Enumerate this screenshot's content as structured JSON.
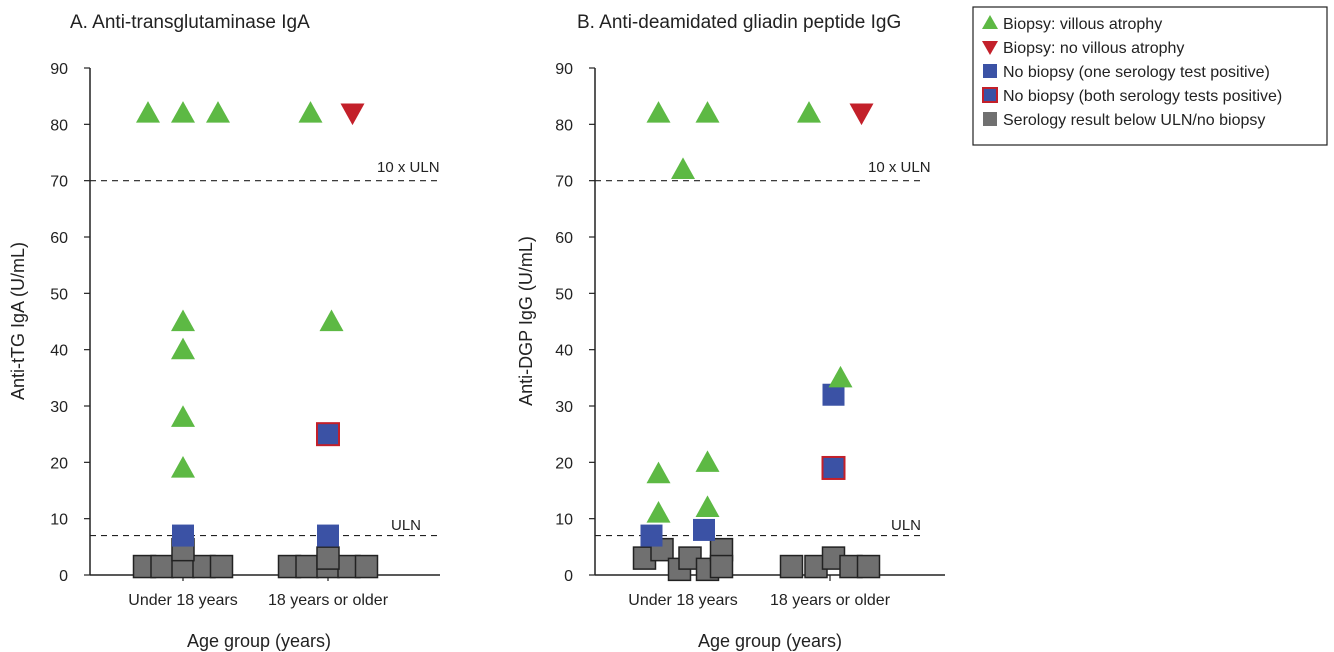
{
  "colors": {
    "villous": "#5db944",
    "no_villous": "#c3202a",
    "one_positive": "#3b52a5",
    "both_positive_border": "#c3202a",
    "below_uln": "#707070",
    "below_uln_border": "#222222"
  },
  "legend": {
    "items": [
      {
        "label": "Biopsy: villous atrophy",
        "marker": "triangle-up",
        "color": "#5db944"
      },
      {
        "label": "Biopsy: no villous atrophy",
        "marker": "triangle-down",
        "color": "#c3202a"
      },
      {
        "label": "No biopsy (one serology test positive)",
        "marker": "square",
        "color": "#3b52a5"
      },
      {
        "label": "No biopsy (both serology tests positive)",
        "marker": "square-red-border",
        "color": "#3b52a5"
      },
      {
        "label": "Serology result below ULN/no biopsy",
        "marker": "square",
        "color": "#707070"
      }
    ]
  },
  "chart_data": [
    {
      "type": "scatter",
      "title": "A. Anti-transglutaminase IgA",
      "xlabel": "Age group (years)",
      "ylabel": "Anti-tTG IgA (U/mL)",
      "categories": [
        "Under 18 years",
        "18 years or older"
      ],
      "ylim": [
        0,
        90
      ],
      "yticks": [
        0,
        10,
        20,
        30,
        40,
        50,
        60,
        70,
        80,
        90
      ],
      "reference_lines": [
        {
          "label": "10 x ULN",
          "value": 70
        },
        {
          "label": "ULN",
          "value": 7
        }
      ],
      "series": [
        {
          "name": "Biopsy: villous atrophy",
          "points": [
            {
              "group": "Under 18 years",
              "offset": -0.5,
              "y": 82
            },
            {
              "group": "Under 18 years",
              "offset": 0,
              "y": 82
            },
            {
              "group": "Under 18 years",
              "offset": 0.5,
              "y": 82
            },
            {
              "group": "Under 18 years",
              "offset": 0,
              "y": 45
            },
            {
              "group": "Under 18 years",
              "offset": 0,
              "y": 40
            },
            {
              "group": "Under 18 years",
              "offset": 0,
              "y": 28
            },
            {
              "group": "Under 18 years",
              "offset": 0,
              "y": 19
            },
            {
              "group": "18 years or older",
              "offset": -0.25,
              "y": 82
            },
            {
              "group": "18 years or older",
              "offset": 0.05,
              "y": 45
            }
          ]
        },
        {
          "name": "Biopsy: no villous atrophy",
          "points": [
            {
              "group": "18 years or older",
              "offset": 0.35,
              "y": 82
            }
          ]
        },
        {
          "name": "No biopsy (one serology test positive)",
          "points": [
            {
              "group": "Under 18 years",
              "offset": 0,
              "y": 7
            },
            {
              "group": "18 years or older",
              "offset": 0,
              "y": 7
            }
          ]
        },
        {
          "name": "No biopsy (both serology tests positive)",
          "points": [
            {
              "group": "18 years or older",
              "offset": 0,
              "y": 25
            }
          ]
        },
        {
          "name": "Serology result below ULN/no biopsy",
          "points": [
            {
              "group": "Under 18 years",
              "offset": -0.55,
              "y": 1.5
            },
            {
              "group": "Under 18 years",
              "offset": -0.3,
              "y": 1.5
            },
            {
              "group": "Under 18 years",
              "offset": 0,
              "y": 1.5
            },
            {
              "group": "Under 18 years",
              "offset": 0.3,
              "y": 1.5
            },
            {
              "group": "Under 18 years",
              "offset": 0.55,
              "y": 1.5
            },
            {
              "group": "Under 18 years",
              "offset": 0,
              "y": 4.5
            },
            {
              "group": "18 years or older",
              "offset": -0.55,
              "y": 1.5
            },
            {
              "group": "18 years or older",
              "offset": -0.3,
              "y": 1.5
            },
            {
              "group": "18 years or older",
              "offset": 0,
              "y": 1.5
            },
            {
              "group": "18 years or older",
              "offset": 0.3,
              "y": 1.5
            },
            {
              "group": "18 years or older",
              "offset": 0.55,
              "y": 1.5
            },
            {
              "group": "18 years or older",
              "offset": 0,
              "y": 3
            }
          ]
        }
      ]
    },
    {
      "type": "scatter",
      "title": "B. Anti-deamidated gliadin peptide IgG",
      "xlabel": "Age group (years)",
      "ylabel": "Anti-DGP IgG (U/mL)",
      "categories": [
        "Under 18 years",
        "18 years or older"
      ],
      "ylim": [
        0,
        90
      ],
      "yticks": [
        0,
        10,
        20,
        30,
        40,
        50,
        60,
        70,
        80,
        90
      ],
      "reference_lines": [
        {
          "label": "10 x ULN",
          "value": 70
        },
        {
          "label": "ULN",
          "value": 7
        }
      ],
      "series": [
        {
          "name": "Biopsy: villous atrophy",
          "points": [
            {
              "group": "Under 18 years",
              "offset": -0.35,
              "y": 82
            },
            {
              "group": "Under 18 years",
              "offset": 0.35,
              "y": 82
            },
            {
              "group": "Under 18 years",
              "offset": 0,
              "y": 72
            },
            {
              "group": "Under 18 years",
              "offset": -0.35,
              "y": 18
            },
            {
              "group": "Under 18 years",
              "offset": -0.35,
              "y": 11
            },
            {
              "group": "Under 18 years",
              "offset": 0.35,
              "y": 20
            },
            {
              "group": "Under 18 years",
              "offset": 0.35,
              "y": 12
            },
            {
              "group": "18 years or older",
              "offset": -0.3,
              "y": 82
            },
            {
              "group": "18 years or older",
              "offset": 0.15,
              "y": 35
            }
          ]
        },
        {
          "name": "Biopsy: no villous atrophy",
          "points": [
            {
              "group": "18 years or older",
              "offset": 0.45,
              "y": 82
            }
          ]
        },
        {
          "name": "No biopsy (one serology test positive)",
          "points": [
            {
              "group": "Under 18 years",
              "offset": -0.45,
              "y": 7
            },
            {
              "group": "Under 18 years",
              "offset": 0.3,
              "y": 8
            },
            {
              "group": "18 years or older",
              "offset": 0.05,
              "y": 32
            }
          ]
        },
        {
          "name": "No biopsy (both serology tests positive)",
          "points": [
            {
              "group": "18 years or older",
              "offset": 0.05,
              "y": 19
            }
          ]
        },
        {
          "name": "Serology result below ULN/no biopsy",
          "points": [
            {
              "group": "Under 18 years",
              "offset": -0.55,
              "y": 3
            },
            {
              "group": "Under 18 years",
              "offset": -0.3,
              "y": 4.5
            },
            {
              "group": "Under 18 years",
              "offset": -0.05,
              "y": 1
            },
            {
              "group": "Under 18 years",
              "offset": 0.1,
              "y": 3
            },
            {
              "group": "Under 18 years",
              "offset": 0.35,
              "y": 1
            },
            {
              "group": "Under 18 years",
              "offset": 0.55,
              "y": 4.5
            },
            {
              "group": "Under 18 years",
              "offset": 0.55,
              "y": 1.5
            },
            {
              "group": "18 years or older",
              "offset": -0.55,
              "y": 1.5
            },
            {
              "group": "18 years or older",
              "offset": -0.2,
              "y": 1.5
            },
            {
              "group": "18 years or older",
              "offset": 0.05,
              "y": 3
            },
            {
              "group": "18 years or older",
              "offset": 0.3,
              "y": 1.5
            },
            {
              "group": "18 years or older",
              "offset": 0.55,
              "y": 1.5
            }
          ]
        }
      ]
    }
  ]
}
